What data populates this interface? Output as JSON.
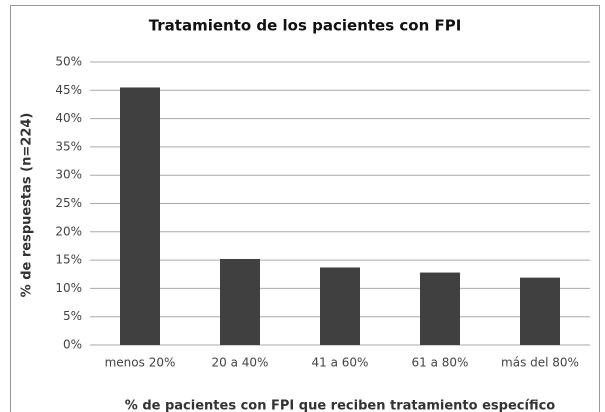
{
  "chart_data": {
    "type": "bar",
    "title": "Tratamiento de los pacientes con FPI",
    "y_label": "% de respuestas (n=224)",
    "x_label": "% de pacientes con FPI que reciben tratamiento específico",
    "categories": [
      "menos 20%",
      "20 a 40%",
      "41 a 60%",
      "61 a 80%",
      "más del 80%"
    ],
    "values": [
      45.5,
      15.2,
      13.7,
      12.8,
      11.9
    ],
    "color": "#404040",
    "ylim": [
      0,
      50
    ],
    "yticks": [
      {
        "value": 0,
        "label": "0%"
      },
      {
        "value": 5,
        "label": "5%"
      },
      {
        "value": 10,
        "label": "10%"
      },
      {
        "value": 15,
        "label": "15%"
      },
      {
        "value": 20,
        "label": "20%"
      },
      {
        "value": 25,
        "label": "25%"
      },
      {
        "value": 30,
        "label": "30%"
      },
      {
        "value": 35,
        "label": "35%"
      },
      {
        "value": 40,
        "label": "40%"
      },
      {
        "value": 45,
        "label": "45%"
      },
      {
        "value": 50,
        "label": "50%"
      }
    ],
    "grid": true
  }
}
